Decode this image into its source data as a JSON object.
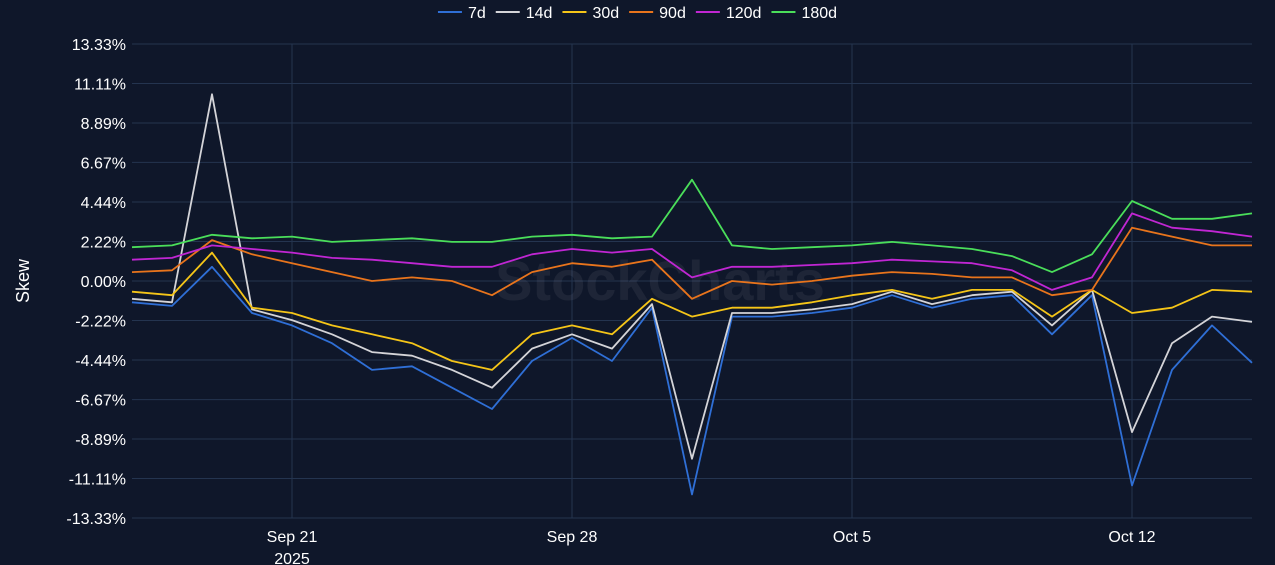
{
  "watermark": "StockCharts",
  "chart_data": {
    "type": "line",
    "ylabel": "Skew",
    "xlabel": "",
    "ylim": [
      -13.33,
      13.33
    ],
    "y_ticks": [
      "13.33%",
      "11.11%",
      "8.89%",
      "6.67%",
      "4.44%",
      "2.22%",
      "0.00%",
      "-2.22%",
      "-4.44%",
      "-6.67%",
      "-8.89%",
      "-11.11%",
      "-13.33%"
    ],
    "y_tick_values": [
      13.33,
      11.11,
      8.89,
      6.67,
      4.44,
      2.22,
      0.0,
      -2.22,
      -4.44,
      -6.67,
      -8.89,
      -11.11,
      -13.33
    ],
    "xlim": [
      "2025-09-17",
      "2025-10-15"
    ],
    "x_ticks": [
      {
        "date": "2025-09-21",
        "label": "Sep 21",
        "sublabel": "2025"
      },
      {
        "date": "2025-09-28",
        "label": "Sep 28",
        "sublabel": ""
      },
      {
        "date": "2025-10-05",
        "label": "Oct 5",
        "sublabel": ""
      },
      {
        "date": "2025-10-12",
        "label": "Oct 12",
        "sublabel": ""
      }
    ],
    "grid": true,
    "legend_position": "top-center",
    "x": [
      "2025-09-17",
      "2025-09-18",
      "2025-09-19",
      "2025-09-20",
      "2025-09-21",
      "2025-09-22",
      "2025-09-23",
      "2025-09-24",
      "2025-09-25",
      "2025-09-26",
      "2025-09-27",
      "2025-09-28",
      "2025-09-29",
      "2025-09-30",
      "2025-10-01",
      "2025-10-02",
      "2025-10-03",
      "2025-10-04",
      "2025-10-05",
      "2025-10-06",
      "2025-10-07",
      "2025-10-08",
      "2025-10-09",
      "2025-10-10",
      "2025-10-11",
      "2025-10-12",
      "2025-10-13",
      "2025-10-14",
      "2025-10-15"
    ],
    "series": [
      {
        "name": "7d",
        "color": "#2f6fd6",
        "values": [
          -1.2,
          -1.4,
          0.8,
          -1.8,
          -2.5,
          -3.5,
          -5.0,
          -4.8,
          -6.0,
          -7.2,
          -4.5,
          -3.2,
          -4.5,
          -1.5,
          -12.0,
          -2.0,
          -2.0,
          -1.8,
          -1.5,
          -0.8,
          -1.5,
          -1.0,
          -0.8,
          -3.0,
          -0.8,
          -11.5,
          -5.0,
          -2.5,
          -4.6
        ]
      },
      {
        "name": "14d",
        "color": "#d4d4d8",
        "values": [
          -1.0,
          -1.2,
          10.5,
          -1.6,
          -2.2,
          -3.0,
          -4.0,
          -4.2,
          -5.0,
          -6.0,
          -3.8,
          -3.0,
          -3.8,
          -1.3,
          -10.0,
          -1.8,
          -1.8,
          -1.6,
          -1.3,
          -0.6,
          -1.3,
          -0.8,
          -0.6,
          -2.5,
          -0.5,
          -8.5,
          -3.5,
          -2.0,
          -2.3
        ]
      },
      {
        "name": "30d",
        "color": "#f5c518",
        "values": [
          -0.6,
          -0.8,
          1.6,
          -1.5,
          -1.8,
          -2.5,
          -3.0,
          -3.5,
          -4.5,
          -5.0,
          -3.0,
          -2.5,
          -3.0,
          -1.0,
          -2.0,
          -1.5,
          -1.5,
          -1.2,
          -0.8,
          -0.5,
          -1.0,
          -0.5,
          -0.5,
          -2.0,
          -0.5,
          -1.8,
          -1.5,
          -0.5,
          -0.6
        ]
      },
      {
        "name": "90d",
        "color": "#e8741c",
        "values": [
          0.5,
          0.6,
          2.3,
          1.5,
          1.0,
          0.5,
          0.0,
          0.2,
          0.0,
          -0.8,
          0.5,
          1.0,
          0.8,
          1.2,
          -1.0,
          0.0,
          -0.2,
          0.0,
          0.3,
          0.5,
          0.4,
          0.2,
          0.2,
          -0.8,
          -0.5,
          3.0,
          2.5,
          2.0,
          2.0
        ]
      },
      {
        "name": "120d",
        "color": "#c026d3",
        "values": [
          1.2,
          1.3,
          2.0,
          1.8,
          1.6,
          1.3,
          1.2,
          1.0,
          0.8,
          0.8,
          1.5,
          1.8,
          1.6,
          1.8,
          0.2,
          0.8,
          0.8,
          0.9,
          1.0,
          1.2,
          1.1,
          1.0,
          0.6,
          -0.5,
          0.2,
          3.8,
          3.0,
          2.8,
          2.5
        ]
      },
      {
        "name": "180d",
        "color": "#4ade5a",
        "values": [
          1.9,
          2.0,
          2.6,
          2.4,
          2.5,
          2.2,
          2.3,
          2.4,
          2.2,
          2.2,
          2.5,
          2.6,
          2.4,
          2.5,
          5.7,
          2.0,
          1.8,
          1.9,
          2.0,
          2.2,
          2.0,
          1.8,
          1.4,
          0.5,
          1.5,
          4.5,
          3.5,
          3.5,
          3.8
        ]
      }
    ]
  }
}
